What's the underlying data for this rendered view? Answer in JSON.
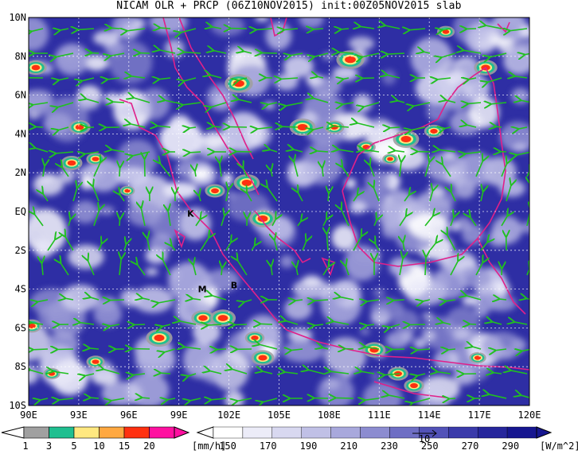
{
  "title": "NICAM OLR + PRCP (06Z10NOV2015) init:00Z05NOV2015 slab",
  "lat_labels": [
    "10N",
    "8N",
    "6N",
    "4N",
    "2N",
    "EQ",
    "2S",
    "4S",
    "6S",
    "8S",
    "10S"
  ],
  "lon_labels": [
    "90E",
    "93E",
    "96E",
    "99E",
    "102E",
    "105E",
    "108E",
    "111E",
    "114E",
    "117E",
    "120E"
  ],
  "markers": [
    {
      "label": "K",
      "lon": 99.7,
      "lat": -0.1
    },
    {
      "label": "M",
      "lon": 100.4,
      "lat": -4.0
    },
    {
      "label": "B",
      "lon": 102.3,
      "lat": -3.8
    }
  ],
  "precip_colorbar": {
    "ticks": [
      "1",
      "3",
      "5",
      "10",
      "15",
      "20"
    ],
    "unit": "[mm/h]",
    "colors": [
      "#a0a0a0",
      "#1fbf90",
      "#ffe880",
      "#ffa840",
      "#ff3010",
      "#ff10a0"
    ]
  },
  "olr_colorbar": {
    "ticks": [
      "150",
      "170",
      "190",
      "210",
      "230",
      "250",
      "270",
      "290"
    ],
    "unit": "[W/m^2]",
    "vector_ref": "10",
    "colors": [
      "#ffffff",
      "#ececf8",
      "#d8d8f0",
      "#c0c0e6",
      "#a8a8dc",
      "#8c8cd0",
      "#6e6ec4",
      "#5252b8",
      "#3a3aaa",
      "#26269c",
      "#161690"
    ]
  },
  "colors": {
    "ocean_blue": "#2a2aa0",
    "coast": "#e0208a",
    "wind": "#20c020",
    "grid": "#ffffff"
  }
}
